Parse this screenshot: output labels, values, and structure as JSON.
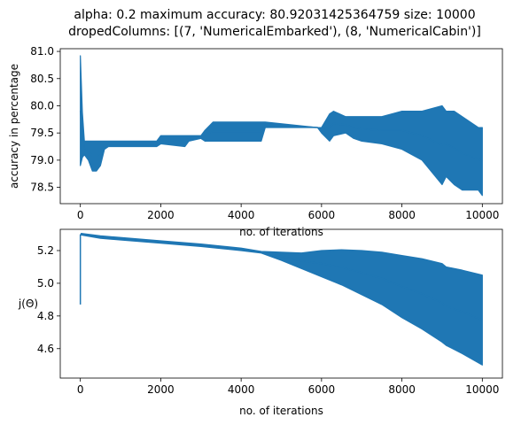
{
  "figure": {
    "title_line1": "alpha: 0.2 maximum accuracy: 80.92031425364759 size: 10000",
    "title_line2": "dropedColumns: [(7, 'NumericalEmbarked'), (8, 'NumericalCabin')]",
    "series_color": "#1f77b4"
  },
  "chart_data": [
    {
      "type": "line",
      "title": "",
      "xlabel": "no. of iterations",
      "ylabel": "accuracy in percentage",
      "xlim": [
        -500,
        10500
      ],
      "ylim": [
        78.2,
        81.05
      ],
      "xticks": [
        0,
        2000,
        4000,
        6000,
        8000,
        10000
      ],
      "yticks": [
        78.5,
        79.0,
        79.5,
        80.0,
        80.5,
        81.0
      ],
      "ytick_labels": [
        "78.5",
        "79.0",
        "79.5",
        "80.0",
        "80.5",
        "81.0"
      ],
      "grid": false,
      "envelope": {
        "x": [
          0,
          50,
          100,
          200,
          300,
          400,
          500,
          600,
          700,
          1200,
          1300,
          1900,
          2000,
          2600,
          2700,
          3000,
          3100,
          3300,
          4500,
          4600,
          5900,
          6000,
          6200,
          6300,
          6600,
          6800,
          7000,
          7500,
          8000,
          8500,
          9000,
          9100,
          9300,
          9500,
          9900,
          10000
        ],
        "high": [
          80.92,
          79.88,
          79.35,
          79.35,
          79.35,
          79.35,
          79.35,
          79.35,
          79.35,
          79.35,
          79.35,
          79.35,
          79.45,
          79.45,
          79.45,
          79.45,
          79.55,
          79.7,
          79.7,
          79.7,
          79.6,
          79.6,
          79.85,
          79.9,
          79.8,
          79.8,
          79.8,
          79.8,
          79.9,
          79.9,
          80.0,
          79.9,
          79.9,
          79.8,
          79.6,
          79.6
        ],
        "low": [
          78.9,
          79.05,
          79.1,
          79.0,
          78.8,
          78.8,
          78.9,
          79.2,
          79.25,
          79.25,
          79.25,
          79.25,
          79.3,
          79.25,
          79.35,
          79.4,
          79.35,
          79.35,
          79.35,
          79.6,
          79.6,
          79.5,
          79.35,
          79.45,
          79.5,
          79.4,
          79.35,
          79.3,
          79.2,
          79.0,
          78.55,
          78.7,
          78.55,
          78.45,
          78.45,
          78.35
        ]
      }
    },
    {
      "type": "area",
      "title": "",
      "xlabel": "no. of iterations",
      "ylabel": "j(Θ)",
      "xlim": [
        -500,
        10500
      ],
      "ylim": [
        4.42,
        5.33
      ],
      "xticks": [
        0,
        2000,
        4000,
        6000,
        8000,
        10000
      ],
      "yticks": [
        4.6,
        4.8,
        5.0,
        5.2
      ],
      "ytick_labels": [
        "4.6",
        "4.8",
        "5.0",
        "5.2"
      ],
      "grid": false,
      "spike": {
        "x": 0,
        "low": 4.87,
        "high": 5.3
      },
      "envelope": {
        "x": [
          20,
          500,
          1000,
          2000,
          3000,
          4000,
          4500,
          5000,
          5500,
          6000,
          6500,
          7000,
          7500,
          8000,
          8500,
          9000,
          9100,
          9500,
          10000
        ],
        "high": [
          5.305,
          5.29,
          5.28,
          5.26,
          5.24,
          5.215,
          5.195,
          5.19,
          5.185,
          5.2,
          5.205,
          5.2,
          5.19,
          5.17,
          5.15,
          5.12,
          5.1,
          5.08,
          5.05
        ],
        "low": [
          5.295,
          5.275,
          5.265,
          5.245,
          5.225,
          5.2,
          5.185,
          5.14,
          5.09,
          5.04,
          4.99,
          4.93,
          4.87,
          4.79,
          4.72,
          4.64,
          4.62,
          4.57,
          4.5
        ]
      }
    }
  ]
}
